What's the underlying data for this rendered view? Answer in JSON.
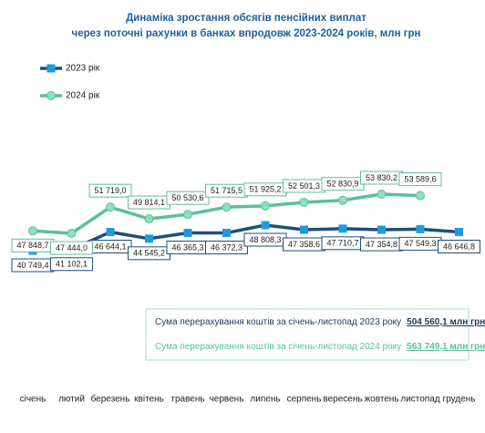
{
  "chart_data": {
    "type": "line",
    "title": [
      "Динаміка зростання обсягів пенсійних виплат",
      "через поточні рахунки в банках впродовж 2023-2024 років, млн грн"
    ],
    "categories": [
      "січень",
      "лютий",
      "березень",
      "квітень",
      "травень",
      "червень",
      "липень",
      "серпень",
      "вересень",
      "жовтень",
      "листопад",
      "грудень"
    ],
    "series": [
      {
        "name": "2023 рік",
        "color": "#1f4e79",
        "marker_color": "#1e9be0",
        "marker": "square",
        "values": [
          40749.4,
          41102.1,
          46644.1,
          44545.2,
          46365.3,
          46372.3,
          48808.3,
          47358.6,
          47710.7,
          47354.8,
          47549.3,
          46646.8
        ],
        "value_labels": [
          "40 749,4",
          "41 102,1",
          "46 644,1",
          "44 545,2",
          "46 365,3",
          "46 372,3",
          "48 808,3",
          "47 358,6",
          "47 710,7",
          "47 354,8",
          "47 549,3",
          "46 646,8"
        ]
      },
      {
        "name": "2024 рік",
        "color": "#5cbf9a",
        "marker_color": "#8fe0bd",
        "marker": "circle",
        "values": [
          47848.7,
          47444.0,
          51719.0,
          49814.1,
          50530.6,
          51715.5,
          51925.2,
          52501.3,
          52830.9,
          53830.2,
          53589.6,
          null
        ],
        "value_labels": [
          "47 848,7",
          "47 444,0",
          "51 719,0",
          "49 814,1",
          "50 530,6",
          "51 715,5",
          "51 925,2",
          "52 501,3",
          "52 830,9",
          "53 830,2",
          "53 589,6",
          null
        ]
      }
    ],
    "summary": [
      {
        "text": "Сума перерахування коштів  за січень-листопад 2023 року",
        "amount": "504 560,1 млн грн"
      },
      {
        "text": "Сума перерахування коштів  за січень-листопад 2024 року",
        "amount": "563 749,1 млн грн"
      }
    ]
  }
}
